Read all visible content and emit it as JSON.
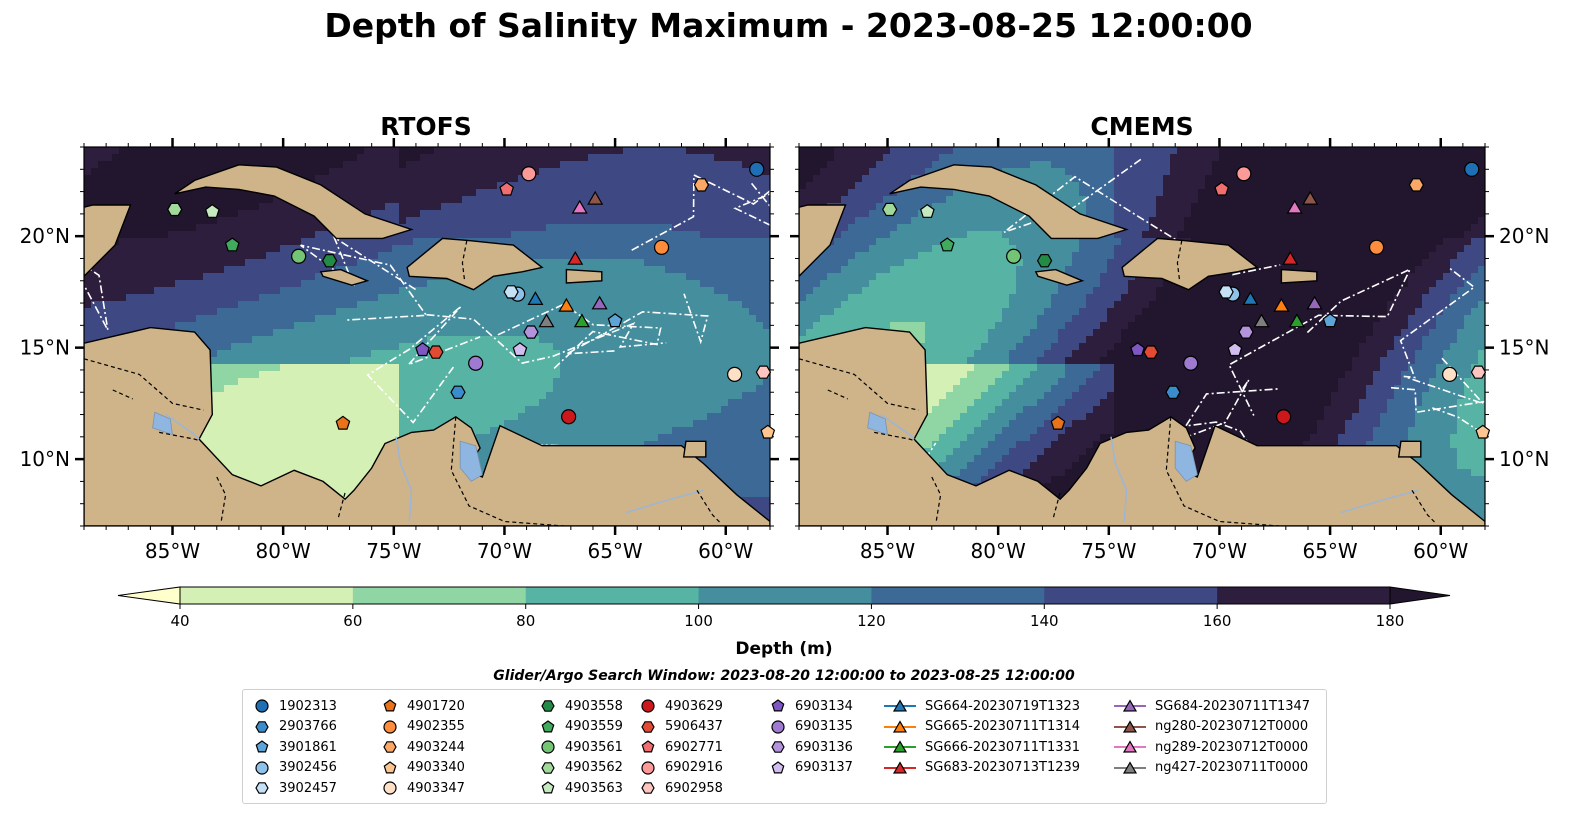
{
  "title": "Depth of Salinity Maximum - 2023-08-25 12:00:00",
  "panels": [
    {
      "title": "RTOFS"
    },
    {
      "title": "CMEMS"
    }
  ],
  "map": {
    "lon_range": [
      -89,
      -58
    ],
    "lat_range": [
      7,
      24
    ],
    "lon_ticks": [
      {
        "value": -85,
        "label": "85°W"
      },
      {
        "value": -80,
        "label": "80°W"
      },
      {
        "value": -75,
        "label": "75°W"
      },
      {
        "value": -70,
        "label": "70°W"
      },
      {
        "value": -65,
        "label": "65°W"
      },
      {
        "value": -60,
        "label": "60°W"
      }
    ],
    "lat_ticks": [
      {
        "value": 20,
        "label": "20°N"
      },
      {
        "value": 15,
        "label": "15°N"
      },
      {
        "value": 10,
        "label": "10°N"
      }
    ],
    "land_color": "#cfb389",
    "lake_color": "#8fb6e0"
  },
  "colorbar": {
    "label": "Depth (m)",
    "ticks": [
      "40",
      "60",
      "80",
      "100",
      "120",
      "140",
      "160",
      "180"
    ],
    "colors": [
      "#ffffcc",
      "#d4f0b4",
      "#8fd6a4",
      "#57b4a4",
      "#448e9e",
      "#3d6997",
      "#3e4882",
      "#2d1e3e",
      "#21162e"
    ]
  },
  "search_window": "Glider/Argo Search Window: 2023-08-20 12:00:00 to 2023-08-25 12:00:00",
  "legend": [
    {
      "label": "1902313",
      "marker": "circle",
      "color": "#1f6fb4",
      "lon": -58.6,
      "lat": 23.0
    },
    {
      "label": "2903766",
      "marker": "hexagon",
      "color": "#3b8ccb",
      "lon": -72.1,
      "lat": 13.0
    },
    {
      "label": "3901861",
      "marker": "pentagon",
      "color": "#5da4d8",
      "lon": -65.0,
      "lat": 16.2
    },
    {
      "label": "3902456",
      "marker": "circle",
      "color": "#8fc2ea",
      "lon": -69.4,
      "lat": 17.4
    },
    {
      "label": "3902457",
      "marker": "hexagon",
      "color": "#c5e1f6",
      "lon": -69.7,
      "lat": 17.5
    },
    {
      "label": "4901720",
      "marker": "pentagon",
      "color": "#e9731a",
      "lon": -77.3,
      "lat": 11.6
    },
    {
      "label": "4902355",
      "marker": "circle",
      "color": "#fd8d3c",
      "lon": -62.9,
      "lat": 19.5
    },
    {
      "label": "4903244",
      "marker": "hexagon",
      "color": "#fba766",
      "lon": -61.1,
      "lat": 22.3
    },
    {
      "label": "4903340",
      "marker": "pentagon",
      "color": "#fdc690",
      "lon": -58.1,
      "lat": 11.2
    },
    {
      "label": "4903347",
      "marker": "circle",
      "color": "#fde0c5",
      "lon": -59.6,
      "lat": 13.8
    },
    {
      "label": "4903558",
      "marker": "hexagon",
      "color": "#238b45",
      "lon": -77.9,
      "lat": 18.9
    },
    {
      "label": "4903559",
      "marker": "pentagon",
      "color": "#41ab5d",
      "lon": -82.3,
      "lat": 19.6
    },
    {
      "label": "4903561",
      "marker": "circle",
      "color": "#74c476",
      "lon": -79.3,
      "lat": 19.1
    },
    {
      "label": "4903562",
      "marker": "hexagon",
      "color": "#a1d99b",
      "lon": -84.9,
      "lat": 21.2
    },
    {
      "label": "4903563",
      "marker": "pentagon",
      "color": "#c7e9c0",
      "lon": -83.2,
      "lat": 21.1
    },
    {
      "label": "4903629",
      "marker": "circle",
      "color": "#cb181d",
      "lon": -67.1,
      "lat": 11.9
    },
    {
      "label": "5906437",
      "marker": "hexagon",
      "color": "#e34a33",
      "lon": -73.1,
      "lat": 14.8
    },
    {
      "label": "6902771",
      "marker": "pentagon",
      "color": "#f06e70",
      "lon": -69.9,
      "lat": 22.1
    },
    {
      "label": "6902916",
      "marker": "circle",
      "color": "#fb9a99",
      "lon": -68.9,
      "lat": 22.8
    },
    {
      "label": "6902958",
      "marker": "hexagon",
      "color": "#fcc5c0",
      "lon": -58.3,
      "lat": 13.9
    },
    {
      "label": "6903134",
      "marker": "pentagon",
      "color": "#7e57c2",
      "lon": -73.7,
      "lat": 14.9
    },
    {
      "label": "6903135",
      "marker": "circle",
      "color": "#9e7bd0",
      "lon": -71.3,
      "lat": 14.3
    },
    {
      "label": "6903136",
      "marker": "hexagon",
      "color": "#b393dd",
      "lon": -68.8,
      "lat": 15.7
    },
    {
      "label": "6903137",
      "marker": "pentagon",
      "color": "#d2bdf0",
      "lon": -69.3,
      "lat": 14.9
    },
    {
      "label": "SG664-20230719T1323",
      "marker": "triangle",
      "color": "#1f77b4",
      "lon": -68.6,
      "lat": 17.2
    },
    {
      "label": "SG665-20230711T1314",
      "marker": "triangle",
      "color": "#ff7f0e",
      "lon": -67.2,
      "lat": 16.9
    },
    {
      "label": "SG666-20230711T1331",
      "marker": "triangle",
      "color": "#2ca02c",
      "lon": -66.5,
      "lat": 16.2
    },
    {
      "label": "SG683-20230713T1239",
      "marker": "triangle",
      "color": "#d62728",
      "lon": -66.8,
      "lat": 19.0
    },
    {
      "label": "SG684-20230711T1347",
      "marker": "triangle",
      "color": "#9467bd",
      "lon": -65.7,
      "lat": 17.0
    },
    {
      "label": "ng280-20230712T0000",
      "marker": "triangle",
      "color": "#8c564b",
      "lon": -65.9,
      "lat": 21.7
    },
    {
      "label": "ng289-20230712T0000",
      "marker": "triangle",
      "color": "#e377c2",
      "lon": -66.6,
      "lat": 21.3
    },
    {
      "label": "ng427-20230711T0000",
      "marker": "triangle",
      "color": "#7f7f7f",
      "lon": -68.1,
      "lat": 16.2
    }
  ]
}
